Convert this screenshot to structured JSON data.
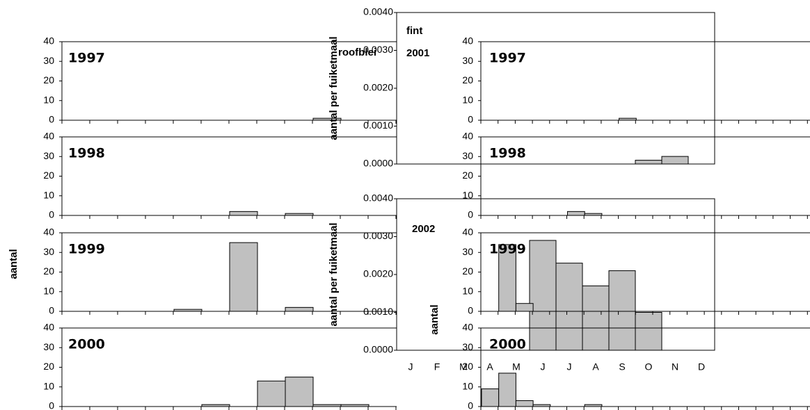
{
  "chart_data": [
    {
      "type": "bar",
      "title": "1997",
      "values": [
        0,
        0,
        0,
        0,
        0,
        0,
        0,
        0,
        0,
        1,
        0,
        0
      ],
      "ylim": [
        0,
        40
      ],
      "yticks": [
        0,
        10,
        20,
        30,
        40
      ],
      "color": "#c0c0c0"
    },
    {
      "type": "bar",
      "title": "1998",
      "values": [
        0,
        0,
        0,
        0,
        0,
        0,
        2,
        0,
        1,
        0,
        0,
        0
      ],
      "ylim": [
        0,
        40
      ],
      "yticks": [
        0,
        10,
        20,
        30,
        40
      ],
      "color": "#c0c0c0"
    },
    {
      "type": "bar",
      "title": "1999",
      "ylabel": "aantal",
      "values": [
        0,
        0,
        0,
        0,
        1,
        0,
        35,
        0,
        2,
        0,
        0,
        0
      ],
      "ylim": [
        0,
        40
      ],
      "yticks": [
        0,
        10,
        20,
        30,
        40
      ],
      "color": "#c0c0c0"
    },
    {
      "type": "bar",
      "title": "2000",
      "values": [
        0,
        0,
        0,
        0,
        0,
        1,
        0,
        13,
        15,
        1,
        1,
        0
      ],
      "ylim": [
        0,
        40
      ],
      "yticks": [
        0,
        10,
        20,
        30,
        40
      ],
      "color": "#c0c0c0"
    },
    {
      "type": "bar",
      "subtitle": "fint",
      "title": "2001",
      "annotation": "roofblei",
      "ylabel": "aantal per fuiketmaal",
      "values": [
        0,
        0,
        0,
        0,
        0,
        0,
        0,
        0,
        0,
        0.0001,
        0.0002,
        0
      ],
      "ylim": [
        0,
        0.004
      ],
      "yticks": [
        {
          "value": 0,
          "label": "0.0000"
        },
        {
          "value": 0.001,
          "label": "0.0010"
        },
        {
          "value": 0.002,
          "label": "0.0020"
        },
        {
          "value": 0.003,
          "label": "0.0030"
        },
        {
          "value": 0.004,
          "label": "0.0040"
        }
      ],
      "color": "#c0c0c0"
    },
    {
      "type": "bar",
      "title": "2002",
      "ylabel": "aantal per fuiketmaal",
      "categories": [
        "J",
        "F",
        "M",
        "A",
        "M",
        "J",
        "J",
        "A",
        "S",
        "O",
        "N",
        "D"
      ],
      "values": [
        0,
        0,
        0,
        0,
        0,
        0.0029,
        0.0023,
        0.0017,
        0.0021,
        0.001,
        0,
        0
      ],
      "ylim": [
        0,
        0.004
      ],
      "yticks": [
        {
          "value": 0,
          "label": "0.0000"
        },
        {
          "value": 0.001,
          "label": "0.0010"
        },
        {
          "value": 0.002,
          "label": "0.0020"
        },
        {
          "value": 0.003,
          "label": "0.0030"
        },
        {
          "value": 0.004,
          "label": "0.0040"
        }
      ],
      "color": "#c0c0c0"
    },
    {
      "type": "bar",
      "title": "1997",
      "values": [
        0,
        0,
        0,
        0,
        0,
        0,
        0,
        0,
        1,
        0,
        0,
        0,
        0,
        0,
        0,
        0,
        0,
        0,
        0
      ],
      "ylim": [
        0,
        40
      ],
      "yticks": [
        0,
        10,
        20,
        30,
        40
      ],
      "color": "#c0c0c0"
    },
    {
      "type": "bar",
      "title": "1998",
      "values": [
        0,
        0,
        0,
        0,
        0,
        2,
        1,
        0,
        0,
        0,
        0,
        0,
        0,
        0,
        0,
        0,
        0,
        0,
        0
      ],
      "ylim": [
        0,
        40
      ],
      "yticks": [
        0,
        10,
        20,
        30,
        40
      ],
      "color": "#c0c0c0"
    },
    {
      "type": "bar",
      "title": "1999",
      "ylabel": "aantal",
      "values": [
        0,
        34,
        4,
        0,
        0,
        0,
        0,
        0,
        0,
        0,
        0,
        0,
        0,
        0,
        0,
        0,
        0,
        0,
        0
      ],
      "ylim": [
        0,
        40
      ],
      "yticks": [
        0,
        10,
        20,
        30,
        40
      ],
      "color": "#c0c0c0"
    },
    {
      "type": "bar",
      "title": "2000",
      "values": [
        9,
        17,
        3,
        1,
        0,
        0,
        1,
        0,
        0,
        0,
        0,
        0,
        0,
        0,
        0,
        0,
        0,
        0,
        0
      ],
      "ylim": [
        0,
        40
      ],
      "yticks": [
        0,
        10,
        20,
        30,
        40
      ],
      "color": "#c0c0c0"
    }
  ]
}
